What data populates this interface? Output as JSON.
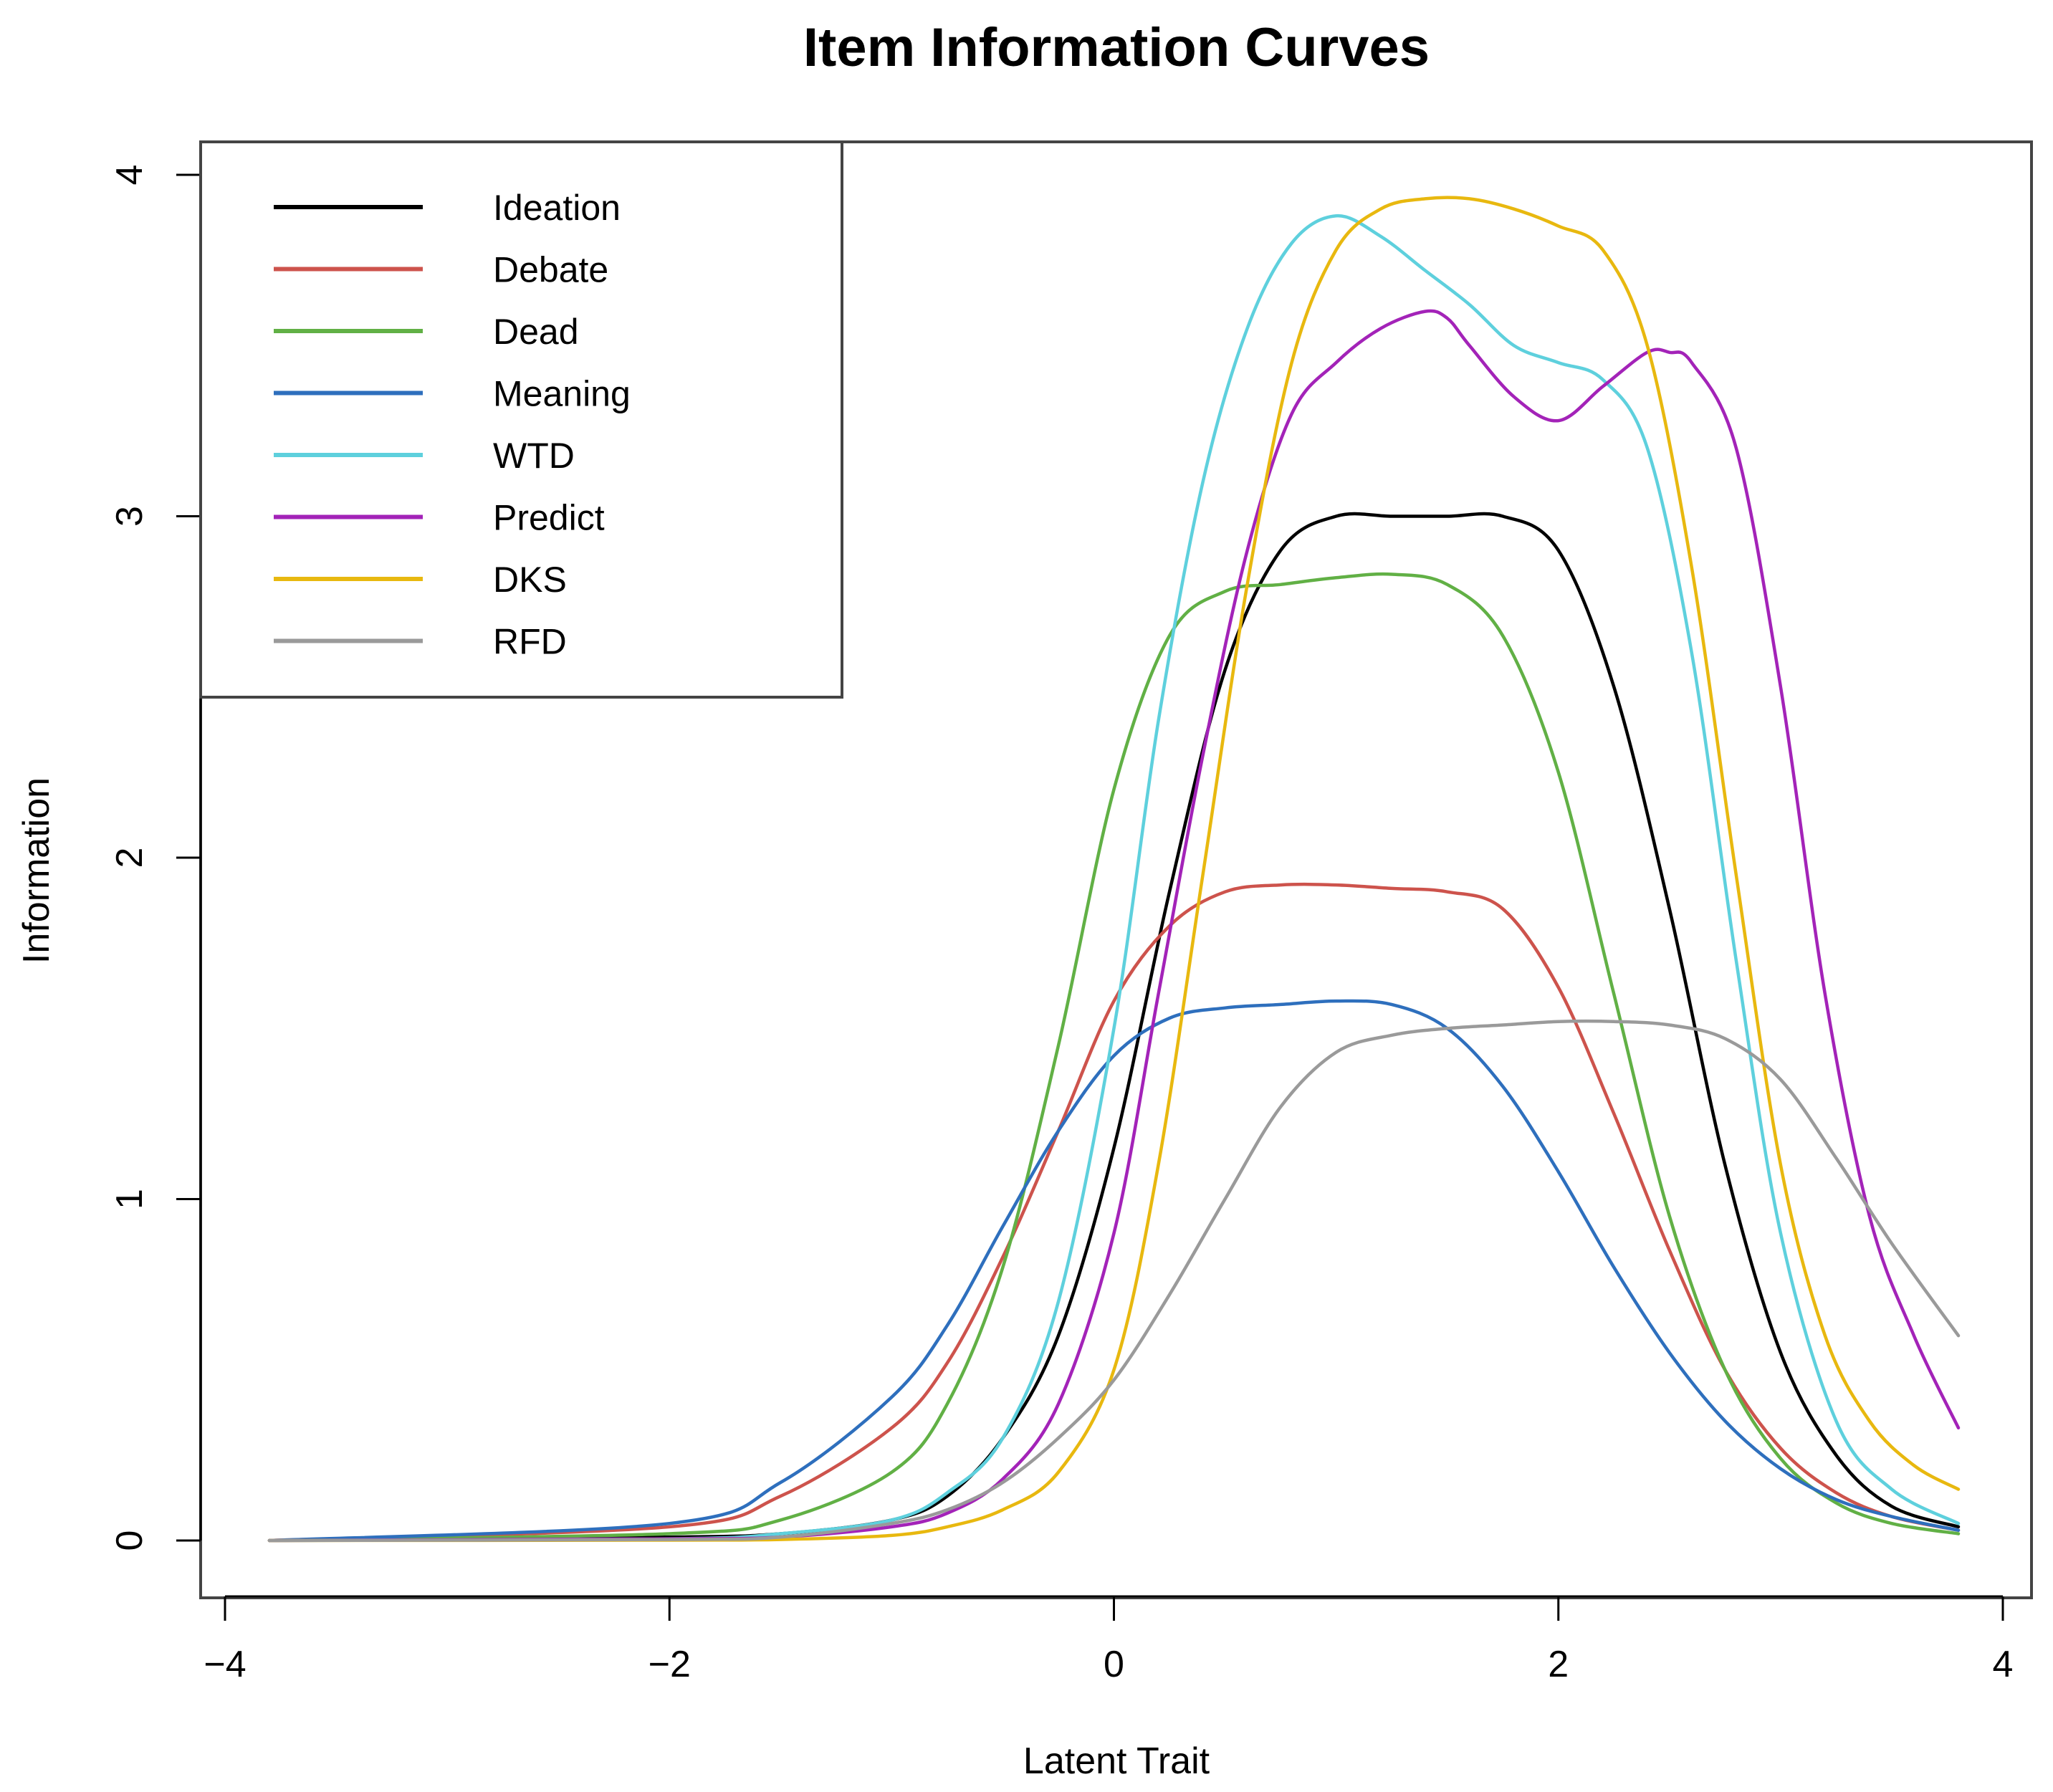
{
  "chart_data": {
    "type": "line",
    "title": "Item Information Curves",
    "xlabel": "Latent Trait",
    "ylabel": "Information",
    "xlim": [
      -4,
      4
    ],
    "ylim": [
      0,
      4
    ],
    "x_ticks": [
      -4,
      -2,
      0,
      2,
      4
    ],
    "x_tick_labels": [
      "−4",
      "−2",
      "0",
      "2",
      "4"
    ],
    "y_ticks": [
      0,
      1,
      2,
      3,
      4
    ],
    "y_tick_labels": [
      "0",
      "1",
      "2",
      "3",
      "4"
    ],
    "grid": false,
    "legend_position": "top-left",
    "series": [
      {
        "name": "Ideation",
        "color": "#000000",
        "x": [
          -3.8,
          -2,
          -1.5,
          -1,
          -0.75,
          -0.5,
          -0.25,
          0,
          0.25,
          0.5,
          0.75,
          1,
          1.25,
          1.5,
          1.75,
          2,
          2.25,
          2.5,
          2.75,
          3,
          3.25,
          3.5,
          3.8
        ],
        "y": [
          0,
          0.01,
          0.02,
          0.06,
          0.13,
          0.3,
          0.6,
          1.15,
          1.9,
          2.55,
          2.9,
          3.0,
          3.0,
          3.0,
          3.0,
          2.9,
          2.5,
          1.85,
          1.1,
          0.55,
          0.25,
          0.1,
          0.04
        ]
      },
      {
        "name": "Debate",
        "color": "#cd534c",
        "x": [
          -3.8,
          -2,
          -1.5,
          -1,
          -0.75,
          -0.5,
          -0.25,
          0,
          0.25,
          0.5,
          0.75,
          1,
          1.25,
          1.5,
          1.75,
          2,
          2.25,
          2.5,
          2.75,
          3,
          3.25,
          3.5,
          3.8
        ],
        "y": [
          0,
          0.04,
          0.13,
          0.33,
          0.52,
          0.83,
          1.2,
          1.58,
          1.8,
          1.9,
          1.92,
          1.92,
          1.91,
          1.9,
          1.85,
          1.62,
          1.25,
          0.85,
          0.5,
          0.27,
          0.14,
          0.07,
          0.03
        ]
      },
      {
        "name": "Dead",
        "color": "#61b045",
        "x": [
          -3.8,
          -2,
          -1.5,
          -1,
          -0.75,
          -0.5,
          -0.25,
          0,
          0.25,
          0.5,
          0.75,
          1,
          1.25,
          1.5,
          1.75,
          2,
          2.25,
          2.5,
          2.75,
          3,
          3.25,
          3.5,
          3.8
        ],
        "y": [
          0,
          0.02,
          0.06,
          0.2,
          0.4,
          0.8,
          1.45,
          2.2,
          2.65,
          2.78,
          2.8,
          2.82,
          2.83,
          2.8,
          2.65,
          2.25,
          1.6,
          0.95,
          0.5,
          0.24,
          0.11,
          0.05,
          0.02
        ]
      },
      {
        "name": "Meaning",
        "color": "#2e6fbd",
        "x": [
          -3.8,
          -2,
          -1.5,
          -1,
          -0.75,
          -0.5,
          -0.25,
          0,
          0.25,
          0.5,
          0.75,
          1,
          1.25,
          1.5,
          1.75,
          2,
          2.25,
          2.5,
          2.75,
          3,
          3.25,
          3.5,
          3.8
        ],
        "y": [
          0,
          0.05,
          0.17,
          0.42,
          0.63,
          0.92,
          1.2,
          1.42,
          1.53,
          1.56,
          1.57,
          1.58,
          1.57,
          1.5,
          1.33,
          1.08,
          0.8,
          0.55,
          0.35,
          0.21,
          0.12,
          0.07,
          0.03
        ]
      },
      {
        "name": "WTD",
        "color": "#5ed0dd",
        "x": [
          -3.8,
          -2,
          -1.5,
          -1,
          -0.75,
          -0.5,
          -0.25,
          0,
          0.2,
          0.4,
          0.6,
          0.8,
          1,
          1.2,
          1.4,
          1.6,
          1.8,
          2,
          2.2,
          2.4,
          2.6,
          2.8,
          3,
          3.25,
          3.5,
          3.8
        ],
        "y": [
          0,
          0.005,
          0.02,
          0.06,
          0.14,
          0.3,
          0.7,
          1.5,
          2.4,
          3.1,
          3.55,
          3.8,
          3.88,
          3.82,
          3.72,
          3.62,
          3.5,
          3.45,
          3.4,
          3.2,
          2.6,
          1.7,
          0.9,
          0.35,
          0.15,
          0.05
        ]
      },
      {
        "name": "Predict",
        "color": "#a323b8",
        "x": [
          -3.8,
          -2,
          -1.5,
          -1,
          -0.75,
          -0.5,
          -0.25,
          0,
          0.2,
          0.4,
          0.6,
          0.8,
          1,
          1.2,
          1.4,
          1.5,
          1.6,
          1.8,
          2,
          2.2,
          2.4,
          2.5,
          2.6,
          2.8,
          3,
          3.2,
          3.4,
          3.6,
          3.8
        ],
        "y": [
          0,
          0.005,
          0.01,
          0.04,
          0.08,
          0.18,
          0.4,
          0.9,
          1.6,
          2.3,
          2.9,
          3.3,
          3.45,
          3.55,
          3.6,
          3.58,
          3.5,
          3.35,
          3.28,
          3.38,
          3.48,
          3.48,
          3.45,
          3.2,
          2.5,
          1.6,
          0.95,
          0.6,
          0.33
        ]
      },
      {
        "name": "DKS",
        "color": "#e8b80f",
        "x": [
          -3.8,
          -2,
          -1.5,
          -1,
          -0.75,
          -0.5,
          -0.25,
          0,
          0.2,
          0.4,
          0.6,
          0.8,
          1,
          1.2,
          1.4,
          1.6,
          1.8,
          2,
          2.2,
          2.4,
          2.6,
          2.8,
          3,
          3.2,
          3.4,
          3.6,
          3.8
        ],
        "y": [
          0,
          0.001,
          0.003,
          0.015,
          0.04,
          0.09,
          0.2,
          0.5,
          1.1,
          1.95,
          2.8,
          3.45,
          3.78,
          3.9,
          3.93,
          3.93,
          3.9,
          3.85,
          3.78,
          3.5,
          2.85,
          1.95,
          1.1,
          0.6,
          0.35,
          0.22,
          0.15
        ]
      },
      {
        "name": "RFD",
        "color": "#9a9a9a",
        "x": [
          -3.8,
          -2,
          -1.5,
          -1,
          -0.75,
          -0.5,
          -0.25,
          0,
          0.25,
          0.5,
          0.75,
          1,
          1.25,
          1.5,
          1.75,
          2,
          2.25,
          2.5,
          2.75,
          3,
          3.25,
          3.5,
          3.8
        ],
        "y": [
          0,
          0.003,
          0.01,
          0.05,
          0.09,
          0.17,
          0.3,
          0.47,
          0.72,
          1.0,
          1.27,
          1.43,
          1.48,
          1.5,
          1.51,
          1.52,
          1.52,
          1.51,
          1.47,
          1.35,
          1.12,
          0.87,
          0.6
        ]
      }
    ]
  }
}
